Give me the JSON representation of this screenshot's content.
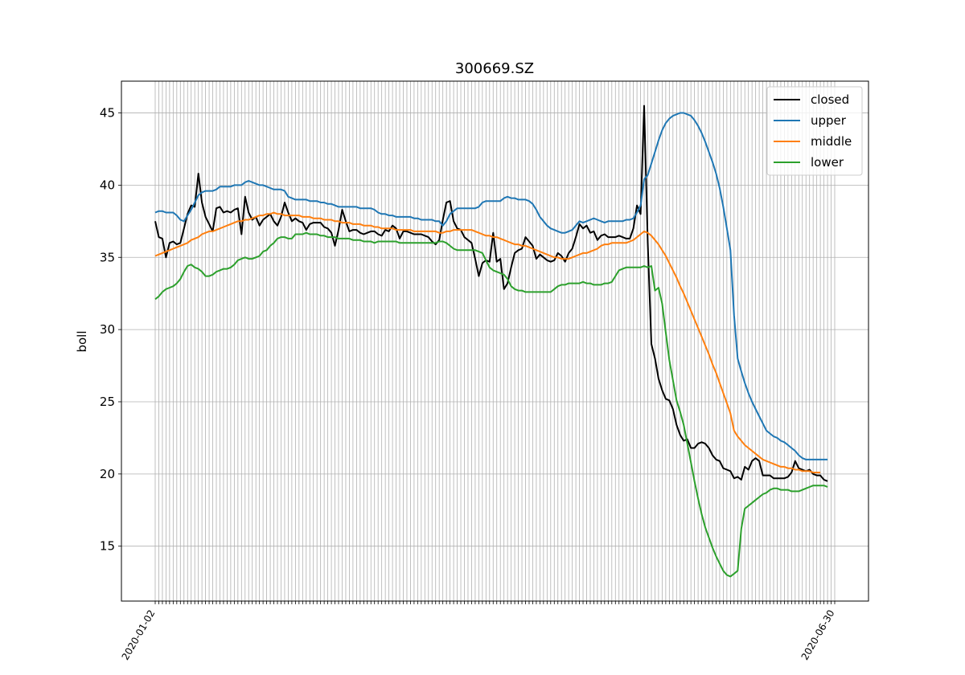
{
  "chart_data": {
    "type": "line",
    "title": "300669.SZ",
    "xlabel": "",
    "ylabel": "boll",
    "ylim": [
      11.2,
      47.2
    ],
    "yticks": [
      15,
      20,
      25,
      30,
      35,
      40,
      45
    ],
    "grid": true,
    "legend_placement": "top-right",
    "x_count": 190,
    "x_tick_labels": [
      "2020-01-02",
      "2020-06-30"
    ],
    "series": [
      {
        "name": "closed",
        "color": "#000000",
        "values": [
          37.5,
          36.4,
          36.3,
          35.0,
          36.0,
          36.1,
          35.9,
          36.0,
          37.0,
          38.0,
          38.6,
          38.5,
          40.8,
          38.8,
          37.8,
          37.3,
          36.8,
          38.4,
          38.5,
          38.1,
          38.2,
          38.1,
          38.3,
          38.4,
          36.6,
          39.2,
          38.1,
          37.6,
          37.8,
          37.2,
          37.6,
          37.8,
          38.0,
          37.5,
          37.2,
          37.8,
          38.8,
          38.1,
          37.5,
          37.7,
          37.5,
          37.4,
          36.9,
          37.3,
          37.4,
          37.4,
          37.4,
          37.1,
          37.0,
          36.7,
          35.8,
          36.9,
          38.3,
          37.5,
          36.8,
          36.9,
          36.9,
          36.7,
          36.6,
          36.7,
          36.8,
          36.8,
          36.6,
          36.5,
          36.9,
          36.8,
          37.2,
          37.0,
          36.3,
          36.8,
          36.8,
          36.7,
          36.6,
          36.6,
          36.6,
          36.5,
          36.4,
          36.1,
          35.9,
          36.2,
          37.6,
          38.8,
          38.9,
          37.5,
          37.0,
          36.9,
          36.4,
          36.2,
          36.0,
          34.9,
          33.7,
          34.6,
          34.8,
          34.7,
          36.7,
          34.7,
          34.9,
          32.8,
          33.2,
          34.3,
          35.3,
          35.5,
          35.6,
          36.4,
          36.1,
          35.8,
          34.9,
          35.2,
          35.0,
          34.8,
          34.7,
          34.8,
          35.3,
          35.1,
          34.7,
          35.3,
          35.6,
          36.4,
          37.3,
          37.0,
          37.2,
          36.7,
          36.8,
          36.2,
          36.5,
          36.6,
          36.4,
          36.4,
          36.4,
          36.5,
          36.4,
          36.3,
          36.3,
          37.0,
          38.6,
          38.0,
          45.5,
          36.0,
          29.0,
          28.0,
          26.6,
          25.8,
          25.2,
          25.1,
          24.5,
          23.4,
          22.7,
          22.3,
          22.4,
          21.8,
          21.8,
          22.1,
          22.2,
          22.1,
          21.8,
          21.3,
          21.0,
          20.9,
          20.4,
          20.3,
          20.2,
          19.7,
          19.8,
          19.6,
          20.5,
          20.3,
          20.9,
          21.1,
          20.9,
          19.9,
          19.9,
          19.9,
          19.7,
          19.7,
          19.7,
          19.7,
          19.8,
          20.1,
          20.9,
          20.4,
          20.3,
          20.2,
          20.3,
          20.0,
          19.9,
          19.9,
          19.6,
          19.5
        ]
      },
      {
        "name": "upper",
        "color": "#1f77b4",
        "values": [
          38.1,
          38.2,
          38.2,
          38.1,
          38.1,
          38.1,
          37.9,
          37.6,
          37.5,
          37.9,
          38.3,
          38.8,
          39.3,
          39.5,
          39.6,
          39.6,
          39.6,
          39.7,
          39.9,
          39.9,
          39.9,
          39.9,
          40.0,
          40.0,
          40.0,
          40.2,
          40.3,
          40.2,
          40.1,
          40.0,
          40.0,
          39.9,
          39.8,
          39.7,
          39.7,
          39.7,
          39.6,
          39.2,
          39.1,
          39.0,
          39.0,
          39.0,
          39.0,
          38.9,
          38.9,
          38.9,
          38.8,
          38.8,
          38.7,
          38.7,
          38.6,
          38.5,
          38.5,
          38.5,
          38.5,
          38.5,
          38.5,
          38.4,
          38.4,
          38.4,
          38.4,
          38.3,
          38.1,
          38.0,
          38.0,
          37.9,
          37.9,
          37.8,
          37.8,
          37.8,
          37.8,
          37.8,
          37.7,
          37.7,
          37.6,
          37.6,
          37.6,
          37.6,
          37.5,
          37.5,
          37.2,
          37.5,
          38.0,
          38.2,
          38.4,
          38.4,
          38.4,
          38.4,
          38.4,
          38.4,
          38.5,
          38.8,
          38.9,
          38.9,
          38.9,
          38.9,
          38.9,
          39.1,
          39.2,
          39.1,
          39.1,
          39.0,
          39.0,
          39.0,
          38.9,
          38.7,
          38.3,
          37.8,
          37.5,
          37.2,
          37.0,
          36.9,
          36.8,
          36.7,
          36.7,
          36.8,
          36.9,
          37.2,
          37.5,
          37.4,
          37.5,
          37.6,
          37.7,
          37.6,
          37.5,
          37.4,
          37.5,
          37.5,
          37.5,
          37.5,
          37.5,
          37.6,
          37.6,
          37.7,
          38.1,
          38.6,
          40.4,
          40.7,
          41.5,
          42.3,
          43.1,
          43.8,
          44.3,
          44.6,
          44.8,
          44.9,
          45.0,
          45.0,
          44.9,
          44.8,
          44.5,
          44.1,
          43.6,
          43.0,
          42.3,
          41.6,
          40.8,
          39.8,
          38.5,
          37.0,
          35.5,
          31.0,
          28.0,
          27.1,
          26.3,
          25.6,
          25.0,
          24.5,
          24.0,
          23.5,
          23.0,
          22.8,
          22.6,
          22.5,
          22.3,
          22.2,
          22.0,
          21.8,
          21.6,
          21.3,
          21.1,
          21.0,
          21.0,
          21.0,
          21.0,
          21.0,
          21.0,
          21.0
        ]
      },
      {
        "name": "middle",
        "color": "#ff7f0e",
        "values": [
          35.1,
          35.2,
          35.3,
          35.4,
          35.5,
          35.6,
          35.7,
          35.8,
          35.9,
          36.0,
          36.2,
          36.3,
          36.4,
          36.6,
          36.7,
          36.8,
          36.8,
          36.9,
          37.0,
          37.1,
          37.2,
          37.3,
          37.4,
          37.5,
          37.5,
          37.6,
          37.6,
          37.7,
          37.8,
          37.9,
          37.9,
          38.0,
          38.0,
          38.1,
          38.0,
          38.0,
          37.9,
          37.9,
          37.9,
          37.9,
          37.9,
          37.8,
          37.8,
          37.8,
          37.7,
          37.7,
          37.7,
          37.6,
          37.6,
          37.6,
          37.5,
          37.5,
          37.4,
          37.4,
          37.4,
          37.3,
          37.3,
          37.3,
          37.2,
          37.2,
          37.2,
          37.1,
          37.1,
          37.0,
          37.0,
          37.0,
          37.0,
          36.9,
          36.9,
          36.9,
          36.9,
          36.9,
          36.8,
          36.8,
          36.8,
          36.8,
          36.8,
          36.8,
          36.8,
          36.7,
          36.7,
          36.8,
          36.8,
          36.9,
          36.9,
          36.9,
          36.9,
          36.9,
          36.9,
          36.8,
          36.7,
          36.6,
          36.5,
          36.5,
          36.4,
          36.4,
          36.3,
          36.2,
          36.1,
          36.0,
          35.9,
          35.9,
          35.8,
          35.8,
          35.7,
          35.6,
          35.5,
          35.4,
          35.3,
          35.2,
          35.1,
          35.0,
          35.0,
          34.9,
          34.9,
          34.9,
          35.0,
          35.1,
          35.2,
          35.3,
          35.3,
          35.4,
          35.5,
          35.6,
          35.8,
          35.9,
          35.9,
          36.0,
          36.0,
          36.0,
          36.0,
          36.0,
          36.1,
          36.2,
          36.4,
          36.6,
          36.8,
          36.7,
          36.5,
          36.2,
          35.9,
          35.5,
          35.1,
          34.6,
          34.1,
          33.6,
          33.0,
          32.5,
          31.9,
          31.3,
          30.7,
          30.1,
          29.5,
          28.9,
          28.3,
          27.6,
          27.0,
          26.3,
          25.6,
          24.9,
          24.2,
          23.0,
          22.6,
          22.3,
          22.0,
          21.8,
          21.6,
          21.4,
          21.2,
          21.0,
          20.9,
          20.8,
          20.7,
          20.6,
          20.5,
          20.5,
          20.4,
          20.4,
          20.3,
          20.3,
          20.2,
          20.2,
          20.2,
          20.1,
          20.1,
          20.1
        ]
      },
      {
        "name": "lower",
        "color": "#2ca02c",
        "values": [
          32.1,
          32.3,
          32.6,
          32.8,
          32.9,
          33.0,
          33.2,
          33.5,
          34.0,
          34.4,
          34.5,
          34.3,
          34.2,
          34.0,
          33.7,
          33.7,
          33.8,
          34.0,
          34.1,
          34.2,
          34.2,
          34.3,
          34.5,
          34.8,
          34.9,
          35.0,
          34.9,
          34.9,
          35.0,
          35.1,
          35.4,
          35.5,
          35.8,
          36.0,
          36.3,
          36.4,
          36.4,
          36.3,
          36.3,
          36.6,
          36.6,
          36.6,
          36.7,
          36.6,
          36.6,
          36.6,
          36.5,
          36.5,
          36.4,
          36.4,
          36.4,
          36.3,
          36.3,
          36.3,
          36.3,
          36.2,
          36.2,
          36.2,
          36.1,
          36.1,
          36.1,
          36.0,
          36.1,
          36.1,
          36.1,
          36.1,
          36.1,
          36.1,
          36.0,
          36.0,
          36.0,
          36.0,
          36.0,
          36.0,
          36.0,
          36.0,
          36.0,
          36.0,
          36.0,
          36.1,
          36.1,
          36.0,
          35.8,
          35.6,
          35.5,
          35.5,
          35.5,
          35.5,
          35.5,
          35.5,
          35.4,
          35.3,
          34.8,
          34.3,
          34.1,
          34.0,
          33.9,
          33.8,
          33.5,
          33.0,
          32.8,
          32.7,
          32.7,
          32.6,
          32.6,
          32.6,
          32.6,
          32.6,
          32.6,
          32.6,
          32.6,
          32.8,
          33.0,
          33.1,
          33.1,
          33.2,
          33.2,
          33.2,
          33.2,
          33.3,
          33.2,
          33.2,
          33.1,
          33.1,
          33.1,
          33.2,
          33.2,
          33.3,
          33.7,
          34.1,
          34.2,
          34.3,
          34.3,
          34.3,
          34.3,
          34.3,
          34.4,
          34.3,
          34.4,
          32.7,
          32.9,
          31.8,
          29.8,
          27.9,
          26.5,
          25.1,
          24.3,
          23.4,
          22.1,
          20.8,
          19.5,
          18.3,
          17.2,
          16.3,
          15.6,
          14.9,
          14.3,
          13.8,
          13.3,
          13.0,
          12.9,
          13.1,
          13.3,
          16.2,
          17.6,
          17.8,
          18.0,
          18.2,
          18.4,
          18.6,
          18.7,
          18.9,
          19.0,
          19.0,
          18.9,
          18.9,
          18.9,
          18.8,
          18.8,
          18.8,
          18.9,
          19.0,
          19.1,
          19.2,
          19.2,
          19.2,
          19.2,
          19.1
        ]
      }
    ]
  }
}
